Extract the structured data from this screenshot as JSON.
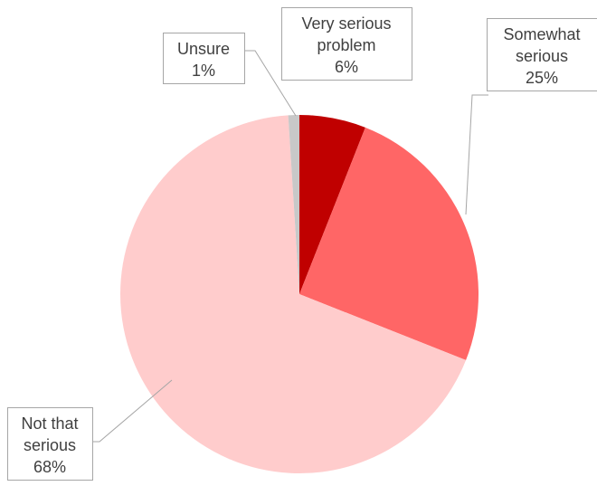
{
  "chart_data": {
    "type": "pie",
    "title": "",
    "slices": [
      {
        "label": [
          "Very serious",
          "problem"
        ],
        "value": 6,
        "value_text": "6%",
        "color": "#c00000"
      },
      {
        "label": [
          "Somewhat",
          "serious"
        ],
        "value": 25,
        "value_text": "25%",
        "color": "#ff6666"
      },
      {
        "label": [
          "Not that",
          "serious"
        ],
        "value": 68,
        "value_text": "68%",
        "color": "#ffcccc"
      },
      {
        "label": [
          "Unsure"
        ],
        "value": 1,
        "value_text": "1%",
        "color": "#c8c8c8"
      }
    ],
    "start_angle": "12 o'clock",
    "direction": "clockwise",
    "legend": "none",
    "data_labels": "outside with leader lines"
  }
}
